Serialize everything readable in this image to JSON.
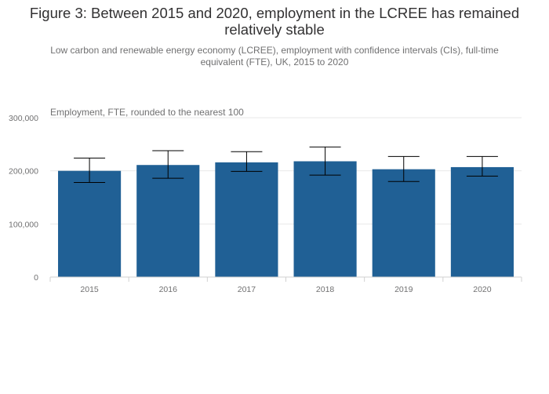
{
  "chart_data": {
    "type": "bar",
    "title": "Figure 3: Between 2015 and 2020, employment in the LCREE has remained relatively stable",
    "subtitle": "Low carbon and renewable energy economy (LCREE), employment with confidence intervals (CIs), full-time equivalent (FTE), UK, 2015 to 2020",
    "ylabel": "Employment, FTE, rounded to the nearest 100",
    "xlabel": "",
    "categories": [
      "2015",
      "2016",
      "2017",
      "2018",
      "2019",
      "2020"
    ],
    "values": [
      200000,
      211000,
      216000,
      218000,
      203000,
      207000
    ],
    "ci_lower": [
      178000,
      186000,
      199000,
      192000,
      180000,
      190000
    ],
    "ci_upper": [
      224000,
      238000,
      236000,
      245000,
      227000,
      227000
    ],
    "ylim": [
      0,
      300000
    ],
    "yticks": [
      0,
      100000,
      200000,
      300000
    ],
    "ytick_labels": [
      "0",
      "100,000",
      "200,000",
      "300,000"
    ],
    "grid": true,
    "bar_color": "#206095"
  }
}
